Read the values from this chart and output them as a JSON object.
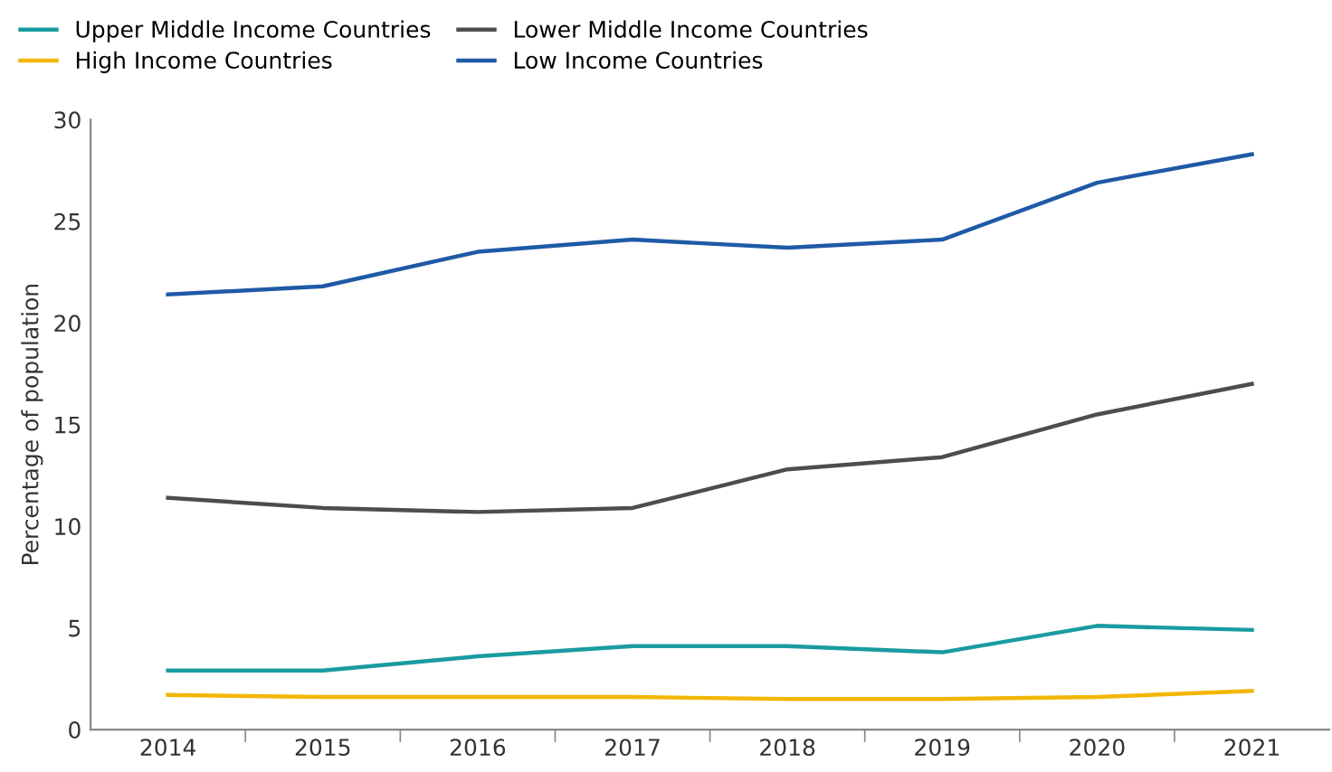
{
  "chart_data": {
    "type": "line",
    "ylabel": "Percentage of population",
    "categories": [
      "2014",
      "2015",
      "2016",
      "2017",
      "2018",
      "2019",
      "2020",
      "2021"
    ],
    "series": [
      {
        "name": "Upper Middle Income Countries",
        "color": "#1a9ba1",
        "values": [
          2.9,
          2.9,
          3.6,
          4.1,
          4.1,
          3.8,
          5.1,
          4.9
        ]
      },
      {
        "name": "High Income Countries",
        "color": "#f2b705",
        "values": [
          1.7,
          1.6,
          1.6,
          1.6,
          1.5,
          1.5,
          1.6,
          1.9
        ]
      },
      {
        "name": "Lower Middle Income Countries",
        "color": "#4d4d4d",
        "values": [
          11.4,
          10.9,
          10.7,
          10.9,
          12.8,
          13.4,
          15.5,
          17.0
        ]
      },
      {
        "name": "Low Income Countries",
        "color": "#1f5aa6",
        "values": [
          21.4,
          21.8,
          23.5,
          24.1,
          23.7,
          24.1,
          26.9,
          28.3
        ]
      }
    ],
    "ylim": [
      0,
      30
    ],
    "yticks": [
      0,
      5,
      10,
      15,
      20,
      25,
      30
    ],
    "grid": false,
    "legend": "top left",
    "marker": "none",
    "line_style": "solid"
  }
}
